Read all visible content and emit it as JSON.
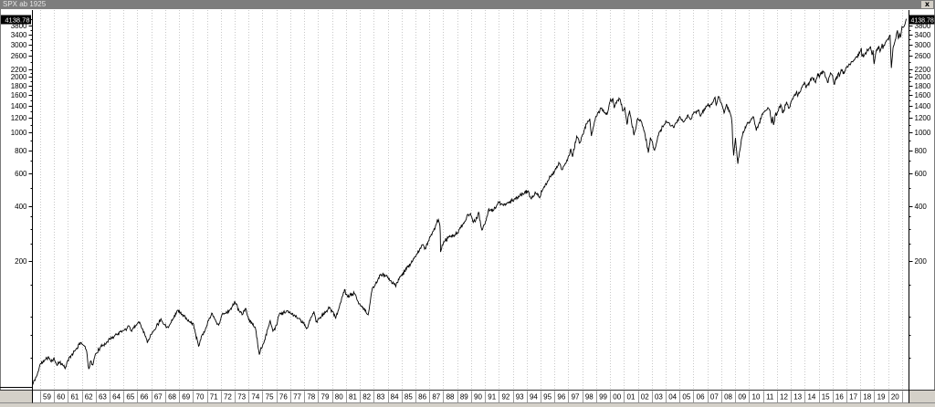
{
  "window": {
    "title": "SPX ab 1925",
    "close_icon": "x"
  },
  "chart_data": {
    "type": "line",
    "title": "SPX ab 1925",
    "xlabel": "",
    "ylabel": "",
    "y_scale": "log",
    "grid": "vertical-dotted-yearly",
    "legend": "none",
    "ylim": [
      40,
      4615
    ],
    "xlim": [
      1958.45,
      2021.5
    ],
    "last_price_label": "4138.78",
    "last_point": [
      2021.3,
      4138.78
    ],
    "x_axis_years_start": 1959,
    "x_tick_labels": [
      "59",
      "60",
      "61",
      "62",
      "63",
      "64",
      "65",
      "66",
      "67",
      "68",
      "69",
      "70",
      "71",
      "72",
      "73",
      "74",
      "75",
      "76",
      "77",
      "78",
      "79",
      "80",
      "81",
      "82",
      "83",
      "84",
      "85",
      "86",
      "87",
      "88",
      "89",
      "90",
      "91",
      "92",
      "93",
      "94",
      "95",
      "96",
      "97",
      "98",
      "99",
      "00",
      "01",
      "02",
      "03",
      "04",
      "05",
      "06",
      "07",
      "08",
      "09",
      "10",
      "11",
      "12",
      "13",
      "14",
      "15",
      "16",
      "17",
      "18",
      "19",
      "20"
    ],
    "y_major_ticks": [
      200,
      400,
      600,
      800,
      1000,
      1200,
      1400,
      1600,
      1800,
      2000,
      2200,
      2600,
      3000,
      3400,
      3800
    ],
    "y_minor_ticks": [
      60,
      80,
      100,
      150,
      250,
      300,
      350,
      500,
      700,
      900,
      1100,
      1300,
      1500,
      1700,
      1900,
      2100,
      2400,
      2800,
      3200,
      3600
    ],
    "noise": {
      "seed": 11,
      "log_amplitude": 0.009,
      "samples_per_year": 26
    },
    "colors": {
      "line": "#000000",
      "grid": "#c8c8c8",
      "axis": "#000000",
      "tick_label": "#000000",
      "price_box_bg": "#000000",
      "price_box_text": "#ffffff",
      "titlebar_bg": "#7d7d7d",
      "titlebar_text": "#e6e6e6",
      "frame_gray": "#d4d0c8",
      "separator": "#999999",
      "strip_line": "#333333"
    },
    "series": [
      {
        "name": "SPX",
        "points": [
          [
            1958.45,
            42.5
          ],
          [
            1958.6,
            45.3
          ],
          [
            1958.8,
            48.5
          ],
          [
            1959.0,
            55.2
          ],
          [
            1959.3,
            57.5
          ],
          [
            1959.6,
            60.7
          ],
          [
            1959.8,
            56.9
          ],
          [
            1960.0,
            59.9
          ],
          [
            1960.2,
            54.8
          ],
          [
            1960.45,
            57.2
          ],
          [
            1960.8,
            52.3
          ],
          [
            1961.0,
            58.1
          ],
          [
            1961.5,
            65.3
          ],
          [
            1961.95,
            72.6
          ],
          [
            1962.2,
            69.1
          ],
          [
            1962.35,
            65.0
          ],
          [
            1962.5,
            52.3
          ],
          [
            1962.65,
            57.6
          ],
          [
            1962.8,
            54.8
          ],
          [
            1963.0,
            63.1
          ],
          [
            1963.5,
            70.0
          ],
          [
            1964.0,
            75.5
          ],
          [
            1964.5,
            80.2
          ],
          [
            1965.0,
            84.2
          ],
          [
            1965.4,
            89.3
          ],
          [
            1965.55,
            84.1
          ],
          [
            1966.1,
            94.1
          ],
          [
            1966.4,
            85.5
          ],
          [
            1966.75,
            73.2
          ],
          [
            1967.0,
            80.3
          ],
          [
            1967.7,
            97.6
          ],
          [
            1967.9,
            91.0
          ],
          [
            1968.2,
            87.7
          ],
          [
            1968.9,
            108.4
          ],
          [
            1969.35,
            101.0
          ],
          [
            1969.55,
            97.0
          ],
          [
            1969.75,
            93.8
          ],
          [
            1970.0,
            92.1
          ],
          [
            1970.12,
            85.7
          ],
          [
            1970.4,
            69.3
          ],
          [
            1970.6,
            78.5
          ],
          [
            1970.85,
            83.5
          ],
          [
            1971.1,
            95.0
          ],
          [
            1971.35,
            104.8
          ],
          [
            1971.65,
            94.2
          ],
          [
            1971.85,
            90.2
          ],
          [
            1972.1,
            103.0
          ],
          [
            1972.6,
            107.5
          ],
          [
            1973.03,
            120.2
          ],
          [
            1973.35,
            107.0
          ],
          [
            1973.6,
            103.8
          ],
          [
            1973.8,
            111.0
          ],
          [
            1974.0,
            96.6
          ],
          [
            1974.25,
            92.5
          ],
          [
            1974.5,
            86.0
          ],
          [
            1974.77,
            62.3
          ],
          [
            1974.92,
            67.4
          ],
          [
            1975.1,
            72.0
          ],
          [
            1975.55,
            95.2
          ],
          [
            1975.75,
            83.5
          ],
          [
            1976.0,
            90.2
          ],
          [
            1976.2,
            102.9
          ],
          [
            1976.75,
            107.8
          ],
          [
            1977.1,
            103.0
          ],
          [
            1977.6,
            98.0
          ],
          [
            1978.2,
            86.9
          ],
          [
            1978.7,
            106.9
          ],
          [
            1978.85,
            94.1
          ],
          [
            1979.1,
            98.0
          ],
          [
            1979.8,
            111.3
          ],
          [
            1980.1,
            106.0
          ],
          [
            1980.27,
            98.2
          ],
          [
            1980.9,
            140.5
          ],
          [
            1981.1,
            129.0
          ],
          [
            1981.6,
            134.0
          ],
          [
            1982.0,
            117.3
          ],
          [
            1982.6,
            102.4
          ],
          [
            1982.9,
            143.0
          ],
          [
            1983.1,
            148.0
          ],
          [
            1983.5,
            170.1
          ],
          [
            1984.0,
            163.0
          ],
          [
            1984.55,
            148.0
          ],
          [
            1985.0,
            167.2
          ],
          [
            1985.5,
            189.0
          ],
          [
            1986.0,
            211.3
          ],
          [
            1986.5,
            245.7
          ],
          [
            1986.7,
            236.0
          ],
          [
            1987.1,
            274.0
          ],
          [
            1987.3,
            292.0
          ],
          [
            1987.65,
            336.8
          ],
          [
            1987.76,
            312.0
          ],
          [
            1987.79,
            282.7
          ],
          [
            1987.81,
            224.8
          ],
          [
            1987.92,
            245.0
          ],
          [
            1988.1,
            257.0
          ],
          [
            1988.5,
            272.0
          ],
          [
            1989.0,
            285.4
          ],
          [
            1989.5,
            322.0
          ],
          [
            1989.77,
            359.8
          ],
          [
            1990.0,
            353.4
          ],
          [
            1990.12,
            330.0
          ],
          [
            1990.45,
            342.0
          ],
          [
            1990.54,
            368.9
          ],
          [
            1990.78,
            295.5
          ],
          [
            1991.05,
            330.0
          ],
          [
            1991.25,
            380.0
          ],
          [
            1991.6,
            377.0
          ],
          [
            1992.0,
            417.1
          ],
          [
            1992.3,
            403.5
          ],
          [
            1992.8,
            422.0
          ],
          [
            1993.1,
            435.0
          ],
          [
            1993.6,
            456.0
          ],
          [
            1994.1,
            482.0
          ],
          [
            1994.3,
            438.9
          ],
          [
            1994.65,
            470.0
          ],
          [
            1994.9,
            445.5
          ],
          [
            1995.1,
            478.0
          ],
          [
            1995.5,
            545.0
          ],
          [
            1996.0,
            615.9
          ],
          [
            1996.35,
            678.0
          ],
          [
            1996.55,
            626.7
          ],
          [
            1997.05,
            748.0
          ],
          [
            1997.17,
            816.0
          ],
          [
            1997.3,
            737.6
          ],
          [
            1997.6,
            954.3
          ],
          [
            1997.82,
            876.7
          ],
          [
            1998.05,
            975.0
          ],
          [
            1998.3,
            1111.0
          ],
          [
            1998.54,
            1186.8
          ],
          [
            1998.66,
            957.3
          ],
          [
            1998.92,
            1163.0
          ],
          [
            1999.1,
            1275.0
          ],
          [
            1999.4,
            1356.0
          ],
          [
            1999.6,
            1277.0
          ],
          [
            1999.78,
            1247.4
          ],
          [
            2000.0,
            1469.3
          ],
          [
            2000.2,
            1527.5
          ],
          [
            2000.3,
            1356.0
          ],
          [
            2000.42,
            1452.0
          ],
          [
            2000.68,
            1520.8
          ],
          [
            2000.95,
            1314.0
          ],
          [
            2001.05,
            1373.7
          ],
          [
            2001.22,
            1103.3
          ],
          [
            2001.4,
            1312.8
          ],
          [
            2001.72,
            965.8
          ],
          [
            2001.95,
            1172.0
          ],
          [
            2002.2,
            1170.3
          ],
          [
            2002.5,
            989.1
          ],
          [
            2002.75,
            776.8
          ],
          [
            2002.9,
            938.9
          ],
          [
            2003.2,
            800.7
          ],
          [
            2003.55,
            1011.0
          ],
          [
            2004.05,
            1139.0
          ],
          [
            2004.6,
            1063.2
          ],
          [
            2004.98,
            1213.5
          ],
          [
            2005.3,
            1137.5
          ],
          [
            2005.6,
            1245.0
          ],
          [
            2005.8,
            1176.8
          ],
          [
            2006.0,
            1268.8
          ],
          [
            2006.35,
            1325.8
          ],
          [
            2006.5,
            1223.7
          ],
          [
            2007.05,
            1438.2
          ],
          [
            2007.17,
            1374.1
          ],
          [
            2007.55,
            1553.1
          ],
          [
            2007.63,
            1406.7
          ],
          [
            2007.78,
            1565.2
          ],
          [
            2008.0,
            1447.2
          ],
          [
            2008.2,
            1273.4
          ],
          [
            2008.38,
            1426.6
          ],
          [
            2008.62,
            1278.0
          ],
          [
            2008.72,
            1214.0
          ],
          [
            2008.78,
            1106.0
          ],
          [
            2008.82,
            899.2
          ],
          [
            2008.89,
            750.1
          ],
          [
            2009.02,
            934.7
          ],
          [
            2009.19,
            676.5
          ],
          [
            2009.45,
            919.1
          ],
          [
            2009.72,
            1071.0
          ],
          [
            2010.02,
            1136.5
          ],
          [
            2010.3,
            1217.3
          ],
          [
            2010.52,
            1022.6
          ],
          [
            2010.85,
            1184.0
          ],
          [
            2011.0,
            1271.9
          ],
          [
            2011.35,
            1363.6
          ],
          [
            2011.5,
            1320.0
          ],
          [
            2011.62,
            1119.5
          ],
          [
            2011.7,
            1218.0
          ],
          [
            2011.76,
            1099.2
          ],
          [
            2011.9,
            1263.0
          ],
          [
            2012.0,
            1257.6
          ],
          [
            2012.27,
            1419.0
          ],
          [
            2012.44,
            1278.2
          ],
          [
            2012.7,
            1465.8
          ],
          [
            2012.87,
            1353.3
          ],
          [
            2013.05,
            1480.0
          ],
          [
            2013.42,
            1667.5
          ],
          [
            2013.5,
            1573.1
          ],
          [
            2013.85,
            1798.0
          ],
          [
            2014.02,
            1848.4
          ],
          [
            2014.1,
            1741.9
          ],
          [
            2014.5,
            1985.4
          ],
          [
            2014.78,
            1862.5
          ],
          [
            2014.93,
            2090.6
          ],
          [
            2015.05,
            1992.0
          ],
          [
            2015.15,
            2104.0
          ],
          [
            2015.38,
            2130.8
          ],
          [
            2015.64,
            1867.6
          ],
          [
            2015.85,
            2104.2
          ],
          [
            2016.0,
            2043.9
          ],
          [
            2016.11,
            1829.1
          ],
          [
            2016.45,
            2111.0
          ],
          [
            2016.49,
            2000.5
          ],
          [
            2016.62,
            2190.2
          ],
          [
            2016.84,
            2085.2
          ],
          [
            2017.0,
            2262.0
          ],
          [
            2017.5,
            2446.0
          ],
          [
            2017.95,
            2690.0
          ],
          [
            2018.07,
            2872.9
          ],
          [
            2018.11,
            2581.0
          ],
          [
            2018.27,
            2614.0
          ],
          [
            2018.45,
            2747.0
          ],
          [
            2018.73,
            2930.8
          ],
          [
            2018.84,
            2632.6
          ],
          [
            2018.92,
            2790.0
          ],
          [
            2018.99,
            2351.1
          ],
          [
            2019.15,
            2784.0
          ],
          [
            2019.33,
            2945.8
          ],
          [
            2019.42,
            2744.5
          ],
          [
            2019.57,
            3025.9
          ],
          [
            2019.63,
            2840.6
          ],
          [
            2019.85,
            3110.0
          ],
          [
            2020.0,
            3230.8
          ],
          [
            2020.14,
            3386.1
          ],
          [
            2020.23,
            2237.4
          ],
          [
            2020.35,
            2863.7
          ],
          [
            2020.45,
            3044.0
          ],
          [
            2020.55,
            3215.0
          ],
          [
            2020.67,
            3580.8
          ],
          [
            2020.74,
            3236.9
          ],
          [
            2020.82,
            3443.0
          ],
          [
            2020.88,
            3269.9
          ],
          [
            2021.0,
            3756.1
          ],
          [
            2021.08,
            3714.2
          ],
          [
            2021.18,
            3811.0
          ],
          [
            2021.24,
            3943.0
          ],
          [
            2021.3,
            4138.78
          ]
        ]
      }
    ]
  }
}
